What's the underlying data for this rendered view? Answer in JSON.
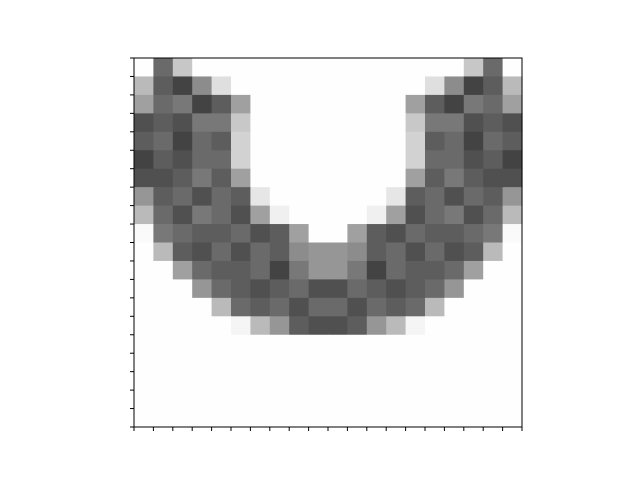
{
  "chart_data": {
    "type": "heatmap",
    "title": "",
    "xlabel": "",
    "ylabel": "",
    "colormap": "gray",
    "xlim": [
      0,
      20
    ],
    "ylim": [
      20,
      0
    ],
    "x_tick_labels_shown": false,
    "y_tick_labels_shown": false,
    "value_range": [
      0,
      255
    ],
    "values": [
      [
        254,
        106,
        199,
        254,
        254,
        254,
        254,
        254,
        254,
        254,
        254,
        254,
        254,
        254,
        254,
        254,
        254,
        199,
        106,
        254
      ],
      [
        186,
        93,
        67,
        140,
        223,
        254,
        254,
        254,
        254,
        254,
        254,
        254,
        254,
        254,
        254,
        223,
        140,
        67,
        93,
        186
      ],
      [
        160,
        106,
        120,
        67,
        93,
        160,
        254,
        254,
        254,
        254,
        254,
        254,
        254,
        254,
        160,
        93,
        67,
        120,
        106,
        160
      ],
      [
        80,
        93,
        80,
        120,
        120,
        200,
        254,
        254,
        254,
        254,
        254,
        254,
        254,
        254,
        200,
        120,
        120,
        80,
        93,
        80
      ],
      [
        93,
        106,
        67,
        106,
        93,
        210,
        254,
        254,
        254,
        254,
        254,
        254,
        254,
        254,
        210,
        93,
        106,
        67,
        106,
        93
      ],
      [
        67,
        93,
        80,
        106,
        106,
        210,
        254,
        254,
        254,
        254,
        254,
        254,
        254,
        254,
        210,
        106,
        106,
        80,
        93,
        67
      ],
      [
        80,
        80,
        93,
        120,
        93,
        160,
        254,
        254,
        254,
        254,
        254,
        254,
        254,
        254,
        160,
        93,
        120,
        93,
        80,
        80
      ],
      [
        150,
        93,
        106,
        80,
        106,
        93,
        230,
        254,
        254,
        254,
        254,
        254,
        254,
        230,
        93,
        106,
        80,
        106,
        93,
        150
      ],
      [
        186,
        106,
        80,
        120,
        106,
        80,
        160,
        240,
        254,
        254,
        254,
        254,
        240,
        160,
        80,
        106,
        120,
        80,
        106,
        186
      ],
      [
        250,
        120,
        106,
        93,
        93,
        106,
        80,
        93,
        160,
        254,
        254,
        160,
        93,
        80,
        106,
        93,
        93,
        106,
        120,
        250
      ],
      [
        254,
        186,
        93,
        80,
        106,
        80,
        106,
        93,
        140,
        150,
        150,
        140,
        93,
        106,
        80,
        106,
        80,
        93,
        186,
        254
      ],
      [
        254,
        254,
        160,
        106,
        93,
        93,
        106,
        67,
        120,
        150,
        150,
        120,
        67,
        106,
        93,
        93,
        106,
        160,
        254,
        254
      ],
      [
        254,
        254,
        254,
        150,
        106,
        93,
        80,
        93,
        106,
        80,
        80,
        106,
        93,
        80,
        93,
        106,
        150,
        254,
        254,
        254
      ],
      [
        254,
        254,
        254,
        254,
        186,
        106,
        93,
        106,
        80,
        106,
        106,
        80,
        106,
        93,
        106,
        186,
        254,
        254,
        254,
        254
      ],
      [
        254,
        254,
        254,
        254,
        254,
        245,
        186,
        150,
        93,
        80,
        80,
        93,
        150,
        186,
        245,
        254,
        254,
        254,
        254,
        254
      ],
      [
        254,
        254,
        254,
        254,
        254,
        254,
        254,
        254,
        254,
        254,
        254,
        254,
        254,
        254,
        254,
        254,
        254,
        254,
        254,
        254
      ],
      [
        254,
        254,
        254,
        254,
        254,
        254,
        254,
        254,
        254,
        254,
        254,
        254,
        254,
        254,
        254,
        254,
        254,
        254,
        254,
        254
      ],
      [
        254,
        254,
        254,
        254,
        254,
        254,
        254,
        254,
        254,
        254,
        254,
        254,
        254,
        254,
        254,
        254,
        254,
        254,
        254,
        254
      ],
      [
        254,
        254,
        254,
        254,
        254,
        254,
        254,
        254,
        254,
        254,
        254,
        254,
        254,
        254,
        254,
        254,
        254,
        254,
        254,
        254
      ],
      [
        254,
        254,
        254,
        254,
        254,
        254,
        254,
        254,
        254,
        254,
        254,
        254,
        254,
        254,
        254,
        254,
        254,
        254,
        254,
        254
      ]
    ]
  }
}
